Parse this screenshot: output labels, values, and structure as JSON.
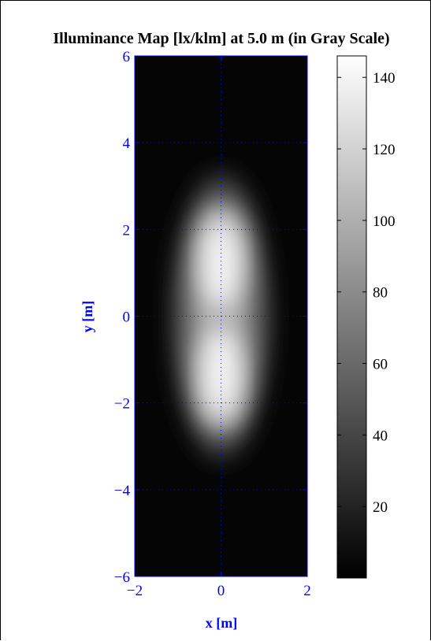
{
  "chart_data": {
    "type": "heatmap",
    "title": "Illuminance Map [lx/klm] at 5.0 m (in Gray Scale)",
    "xlabel": "x [m]",
    "ylabel": "y [m]",
    "xlim": [
      -2,
      2
    ],
    "ylim": [
      -6,
      6
    ],
    "x_ticks": [
      -2,
      0,
      2
    ],
    "y_ticks": [
      -6,
      -4,
      -2,
      0,
      2,
      4,
      6
    ],
    "x_tick_labels": [
      "−2",
      "0",
      "2"
    ],
    "y_tick_labels": [
      "−6",
      "−4",
      "−2",
      "0",
      "2",
      "4",
      "6"
    ],
    "grid": true,
    "colormap": "gray",
    "colorbar": {
      "range": [
        0,
        146
      ],
      "ticks": [
        20,
        40,
        60,
        80,
        100,
        120,
        140
      ],
      "tick_labels": [
        "20",
        "40",
        "60",
        "80",
        "100",
        "120",
        "140"
      ]
    },
    "peaks": [
      {
        "x": 0,
        "y": 1.2,
        "value": 140
      },
      {
        "x": 0,
        "y": -1.3,
        "value": 140
      }
    ],
    "center_value_at_origin": 95,
    "background_value": 2
  },
  "colors": {
    "axis": "#0000ff",
    "title": "#000000",
    "frame": "#000000"
  }
}
